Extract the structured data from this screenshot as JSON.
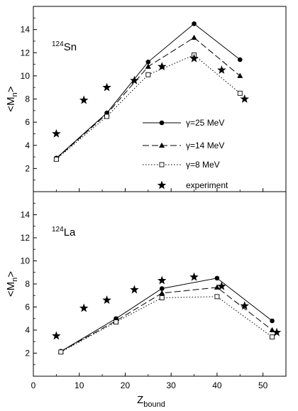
{
  "chart_data": [
    {
      "type": "line",
      "panel_label": {
        "mass": "124",
        "element": "Sn"
      },
      "ylabel": {
        "main": "<M",
        "sub": "n",
        "end": ">"
      },
      "xlim": [
        0,
        55
      ],
      "ylim": [
        0,
        16
      ],
      "yticks": [
        "2",
        "4",
        "6",
        "8",
        "10",
        "12",
        "14"
      ],
      "series": [
        {
          "name": "γ=25 MeV",
          "marker": "circle",
          "dash": "solid",
          "x": [
            5,
            16,
            25,
            35,
            45
          ],
          "y": [
            2.9,
            6.8,
            11.2,
            14.5,
            11.4
          ]
        },
        {
          "name": "γ=14 MeV",
          "marker": "triangle",
          "dash": "dashed",
          "x": [
            5,
            16,
            25,
            35,
            45
          ],
          "y": [
            2.85,
            6.7,
            10.8,
            13.3,
            10.0
          ]
        },
        {
          "name": "γ=8 MeV",
          "marker": "square",
          "dash": "dotted",
          "x": [
            5,
            16,
            25,
            35,
            45
          ],
          "y": [
            2.8,
            6.5,
            10.1,
            11.8,
            8.5
          ]
        },
        {
          "name": "experiment",
          "marker": "star",
          "dash": "none",
          "x": [
            5,
            11,
            16,
            22,
            28,
            35,
            41,
            46
          ],
          "y": [
            5.0,
            7.9,
            9.0,
            9.6,
            10.8,
            11.5,
            10.5,
            8.0
          ]
        }
      ]
    },
    {
      "type": "line",
      "panel_label": {
        "mass": "124",
        "element": "La"
      },
      "ylabel": {
        "main": "<M",
        "sub": "n",
        "end": ">"
      },
      "xlabel": {
        "main": "Z",
        "sub": "bound"
      },
      "xlim": [
        0,
        55
      ],
      "ylim": [
        0,
        16
      ],
      "xticks": [
        "0",
        "10",
        "20",
        "30",
        "40",
        "50"
      ],
      "yticks": [
        "2",
        "4",
        "6",
        "8",
        "10",
        "12",
        "14"
      ],
      "series": [
        {
          "name": "γ=25 MeV",
          "marker": "circle",
          "dash": "solid",
          "x": [
            6,
            18,
            28,
            40,
            52
          ],
          "y": [
            2.15,
            5.0,
            7.6,
            8.5,
            4.8
          ]
        },
        {
          "name": "γ=14 MeV",
          "marker": "triangle",
          "dash": "dashed",
          "x": [
            6,
            18,
            28,
            40,
            52
          ],
          "y": [
            2.15,
            4.8,
            7.2,
            7.7,
            4.0
          ]
        },
        {
          "name": "γ=8 MeV",
          "marker": "square",
          "dash": "dotted",
          "x": [
            6,
            18,
            28,
            40,
            52
          ],
          "y": [
            2.1,
            4.7,
            6.8,
            6.9,
            3.4
          ]
        },
        {
          "name": "experiment",
          "marker": "star",
          "dash": "none",
          "x": [
            5,
            11,
            16,
            22,
            28,
            35,
            41,
            46,
            53
          ],
          "y": [
            3.5,
            5.9,
            6.6,
            7.5,
            8.3,
            8.6,
            7.8,
            6.1,
            3.8
          ]
        }
      ]
    }
  ]
}
